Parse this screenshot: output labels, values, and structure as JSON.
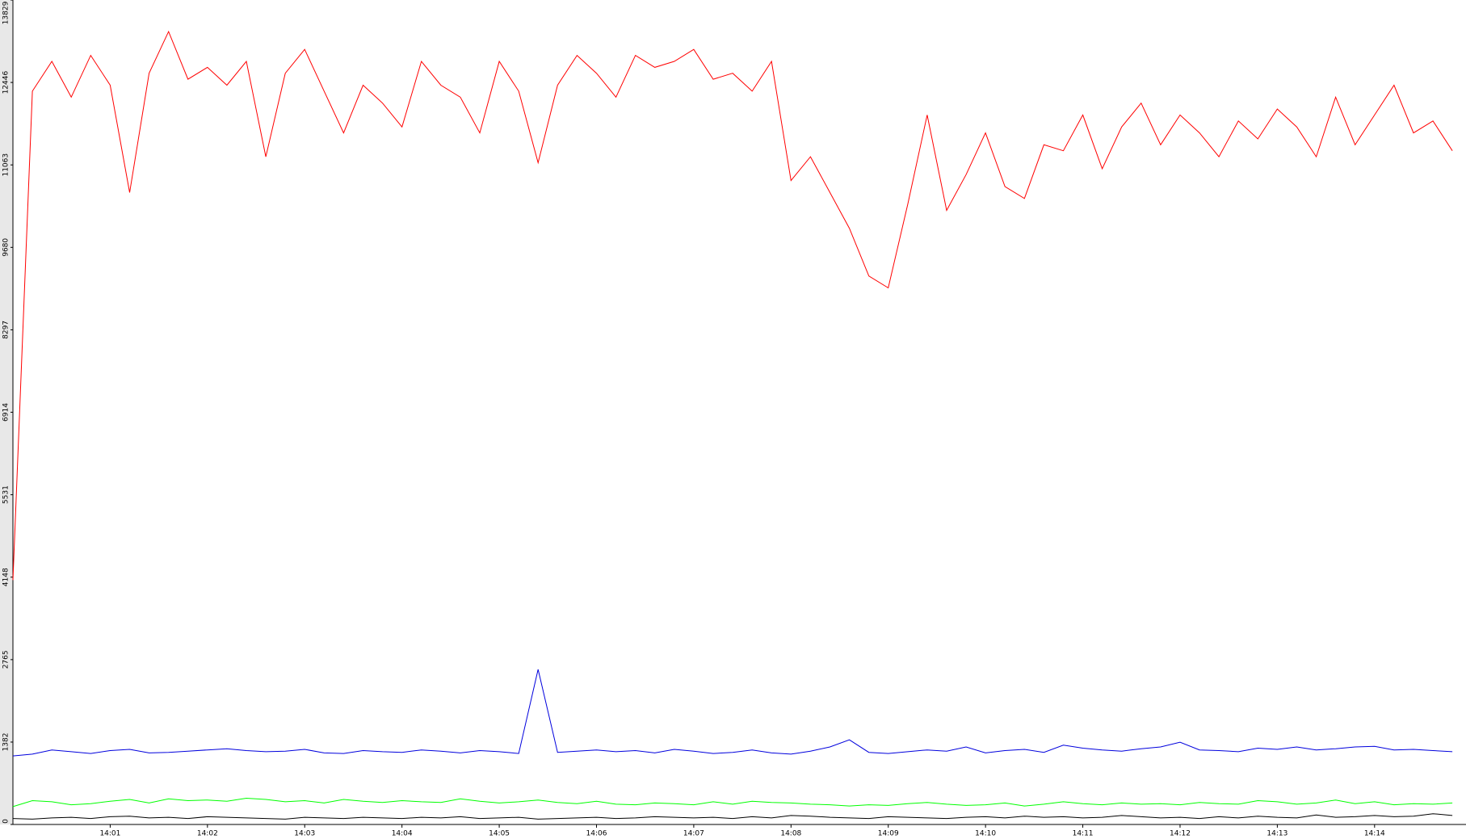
{
  "chart_data": {
    "type": "line",
    "x": [
      0,
      0.2,
      0.4,
      0.6,
      0.8,
      1,
      1.2,
      1.4,
      1.6,
      1.8,
      2,
      2.2,
      2.4,
      2.6,
      2.8,
      3,
      3.2,
      3.4,
      3.6,
      3.8,
      4,
      4.2,
      4.4,
      4.6,
      4.8,
      5,
      5.2,
      5.4,
      5.6,
      5.8,
      6,
      6.2,
      6.4,
      6.6,
      6.8,
      7,
      7.2,
      7.4,
      7.6,
      7.8,
      8,
      8.2,
      8.4,
      8.6,
      8.8,
      9,
      9.2,
      9.4,
      9.6,
      9.8,
      10,
      10.2,
      10.4,
      10.6,
      10.8,
      11,
      11.2,
      11.4,
      11.6,
      11.8,
      12,
      12.2,
      12.4,
      12.6,
      12.8,
      13,
      13.2,
      13.4,
      13.6,
      13.8,
      14,
      14.2,
      14.4,
      14.6,
      14.8
    ],
    "series": [
      {
        "color": "#ff0000",
        "values": [
          4100,
          12300,
          12800,
          12200,
          12900,
          12400,
          10600,
          12600,
          13300,
          12500,
          12700,
          12400,
          12800,
          11200,
          12600,
          13000,
          12300,
          11600,
          12400,
          12100,
          11700,
          12800,
          12400,
          12200,
          11600,
          12800,
          12300,
          11100,
          12400,
          12900,
          12600,
          12200,
          12900,
          12700,
          12800,
          13000,
          12500,
          12600,
          12300,
          12800,
          10800,
          11200,
          10600,
          10000,
          9200,
          9000,
          10400,
          11900,
          10300,
          10900,
          11600,
          10700,
          10500,
          11400,
          11300,
          11900,
          11000,
          11700,
          12100,
          11400,
          11900,
          11600,
          11200,
          11800,
          11500,
          12000,
          11700,
          11200,
          12200,
          11400,
          11900,
          12400,
          11600,
          11800,
          11300
        ]
      },
      {
        "color": "#0000dd",
        "values": [
          1150,
          1180,
          1250,
          1220,
          1190,
          1240,
          1260,
          1200,
          1210,
          1230,
          1250,
          1270,
          1240,
          1220,
          1230,
          1260,
          1200,
          1190,
          1240,
          1220,
          1210,
          1250,
          1230,
          1200,
          1240,
          1220,
          1190,
          2600,
          1210,
          1230,
          1250,
          1220,
          1240,
          1200,
          1260,
          1230,
          1190,
          1210,
          1250,
          1200,
          1180,
          1230,
          1300,
          1420,
          1210,
          1190,
          1220,
          1250,
          1230,
          1300,
          1200,
          1240,
          1260,
          1210,
          1330,
          1280,
          1250,
          1230,
          1270,
          1300,
          1380,
          1250,
          1240,
          1220,
          1280,
          1260,
          1300,
          1250,
          1270,
          1300,
          1310,
          1250,
          1260,
          1240,
          1220
        ]
      },
      {
        "color": "#00ff00",
        "values": [
          300,
          400,
          380,
          330,
          350,
          390,
          420,
          360,
          430,
          400,
          410,
          390,
          440,
          420,
          380,
          400,
          360,
          420,
          390,
          370,
          400,
          380,
          370,
          430,
          390,
          360,
          380,
          410,
          370,
          350,
          390,
          340,
          330,
          360,
          350,
          330,
          380,
          340,
          390,
          370,
          360,
          340,
          330,
          310,
          330,
          320,
          350,
          370,
          340,
          320,
          330,
          360,
          310,
          340,
          380,
          350,
          330,
          360,
          340,
          350,
          330,
          370,
          350,
          340,
          400,
          380,
          340,
          360,
          410,
          350,
          380,
          330,
          350,
          340,
          360
        ]
      },
      {
        "color": "#000000",
        "values": [
          100,
          90,
          110,
          120,
          100,
          130,
          140,
          110,
          120,
          100,
          130,
          120,
          110,
          100,
          90,
          120,
          110,
          100,
          120,
          110,
          100,
          120,
          110,
          130,
          100,
          110,
          120,
          90,
          100,
          110,
          120,
          100,
          110,
          130,
          120,
          110,
          120,
          100,
          130,
          110,
          150,
          140,
          120,
          110,
          100,
          130,
          120,
          110,
          100,
          120,
          130,
          110,
          140,
          120,
          130,
          110,
          120,
          150,
          130,
          110,
          120,
          100,
          130,
          110,
          140,
          120,
          110,
          160,
          120,
          130,
          150,
          130,
          140,
          180,
          150
        ]
      }
    ],
    "xlim": [
      0,
      14.94
    ],
    "xticks": [
      {
        "value": 1,
        "label": "14:01"
      },
      {
        "value": 2,
        "label": "14:02"
      },
      {
        "value": 3,
        "label": "14:03"
      },
      {
        "value": 4,
        "label": "14:04"
      },
      {
        "value": 5,
        "label": "14:05"
      },
      {
        "value": 6,
        "label": "14:06"
      },
      {
        "value": 7,
        "label": "14:07"
      },
      {
        "value": 8,
        "label": "14:08"
      },
      {
        "value": 9,
        "label": "14:09"
      },
      {
        "value": 10,
        "label": "14:10"
      },
      {
        "value": 11,
        "label": "14:11"
      },
      {
        "value": 12,
        "label": "14:12"
      },
      {
        "value": 13,
        "label": "14:13"
      },
      {
        "value": 14,
        "label": "14:14"
      }
    ],
    "ylim": [
      0,
      13829
    ],
    "yticks": [
      0,
      1382,
      2765,
      4148,
      5531,
      6914,
      8297,
      9680,
      11063,
      12446,
      13829
    ],
    "grid": false
  }
}
